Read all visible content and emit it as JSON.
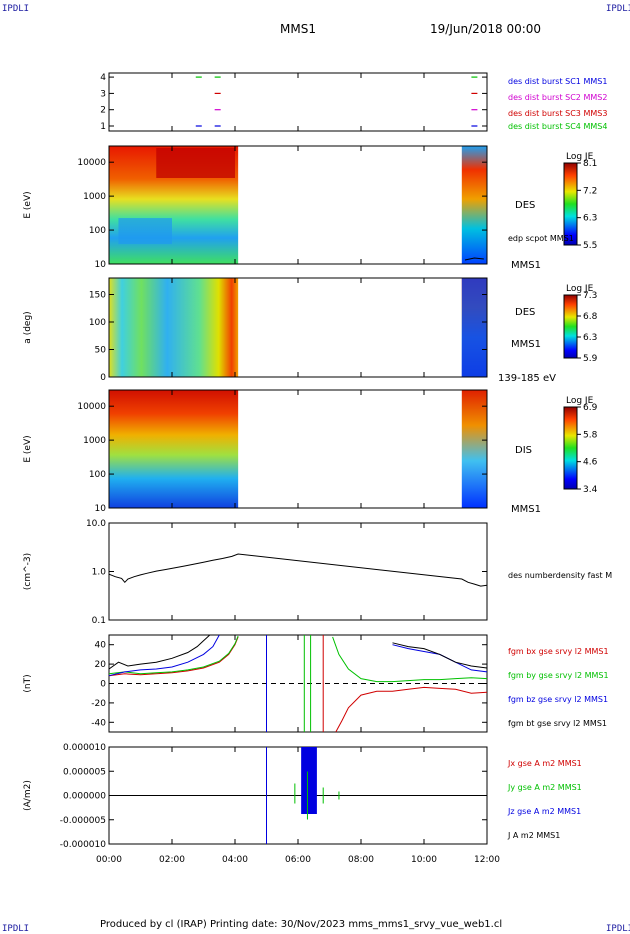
{
  "corner_marks": {
    "top_left": "IPDLI",
    "top_right": "IPDLI",
    "bottom_left": "IPDLI",
    "bottom_right": "IPDLI"
  },
  "header": {
    "spacecraft": "MMS1",
    "date": "19/Jun/2018 00:00"
  },
  "footer": {
    "text": "Produced by cl (IRAP)   Printing date: 30/Nov/2023   mms_mms1_srvy_vue_web1.cl"
  },
  "time_axis": {
    "labels": [
      "00:00",
      "02:00",
      "04:00",
      "06:00",
      "08:00",
      "10:00",
      "12:00"
    ],
    "range_hours": [
      0,
      12
    ]
  },
  "colors": {
    "red": "#d00000",
    "green": "#00c000",
    "blue": "#0000e0",
    "magenta": "#d000d0",
    "black": "#000000"
  },
  "chart_data": [
    {
      "id": "burst",
      "type": "scatter",
      "yticks": [
        "4",
        "3",
        "2",
        "1"
      ],
      "series": [
        {
          "name": "des dist burst SC1 MMS1",
          "level": 1,
          "color": "#0000e0",
          "x": [
            2.85,
            3.45,
            11.6
          ]
        },
        {
          "name": "des dist burst SC2 MMS2",
          "level": 2,
          "color": "#d000d0",
          "x": [
            3.45,
            11.6
          ]
        },
        {
          "name": "des dist burst SC3 MMS3",
          "level": 3,
          "color": "#d00000",
          "x": [
            3.45,
            11.6
          ]
        },
        {
          "name": "des dist burst SC4 MMS4",
          "level": 4,
          "color": "#00c000",
          "x": [
            2.85,
            3.45,
            11.6
          ]
        }
      ]
    },
    {
      "id": "des_energy",
      "type": "heatmap",
      "ylabel": "E (eV)",
      "yticks": [
        "10000",
        "1000",
        "100",
        "10"
      ],
      "ylim": [
        10,
        30000
      ],
      "log": true,
      "label": "DES",
      "overlay": "edp scpot MMS1",
      "instrument": "MMS1",
      "colorbar": {
        "title": "Log JE",
        "ticks": [
          "8.1",
          "7.2",
          "6.3",
          "5.5"
        ],
        "min": 5.5,
        "max": 8.1
      },
      "coverage_hours": [
        [
          0,
          4.1
        ],
        [
          11.2,
          12
        ]
      ]
    },
    {
      "id": "des_pitch",
      "type": "heatmap",
      "ylabel": "a (deg)",
      "yticks": [
        "150",
        "100",
        "50",
        "0"
      ],
      "ylim": [
        0,
        180
      ],
      "label": "DES",
      "instrument": "MMS1",
      "energy_range": "139-185 eV",
      "colorbar": {
        "title": "Log JE",
        "ticks": [
          "7.3",
          "6.8",
          "6.3",
          "5.9"
        ],
        "min": 5.9,
        "max": 7.3
      },
      "coverage_hours": [
        [
          0,
          4.1
        ],
        [
          11.2,
          12
        ]
      ]
    },
    {
      "id": "dis_energy",
      "type": "heatmap",
      "ylabel": "E (eV)",
      "yticks": [
        "10000",
        "1000",
        "100",
        "10"
      ],
      "ylim": [
        10,
        30000
      ],
      "log": true,
      "label": "DIS",
      "instrument": "MMS1",
      "colorbar": {
        "title": "Log JE",
        "ticks": [
          "6.9",
          "5.8",
          "4.6",
          "3.4"
        ],
        "min": 3.4,
        "max": 6.9
      },
      "coverage_hours": [
        [
          0,
          4.1
        ],
        [
          11.2,
          12
        ]
      ]
    },
    {
      "id": "density",
      "type": "line",
      "ylabel": "(cm^-3)",
      "yticks": [
        "10.0",
        "1.0",
        "0.1"
      ],
      "ylim": [
        0.1,
        10
      ],
      "log": true,
      "series": [
        {
          "name": "des numberdensity fast M",
          "color": "#000000",
          "x": [
            0.0,
            0.2,
            0.4,
            0.5,
            0.6,
            0.8,
            1.0,
            1.2,
            1.5,
            1.8,
            2.1,
            2.4,
            2.7,
            3.0,
            3.3,
            3.6,
            3.9,
            4.1,
            11.2,
            11.4,
            11.6,
            11.8,
            12.0
          ],
          "y": [
            0.88,
            0.78,
            0.72,
            0.6,
            0.7,
            0.78,
            0.85,
            0.92,
            1.02,
            1.1,
            1.2,
            1.3,
            1.42,
            1.55,
            1.7,
            1.85,
            2.05,
            2.3,
            0.7,
            0.6,
            0.55,
            0.5,
            0.52
          ]
        }
      ]
    },
    {
      "id": "fgm",
      "type": "line",
      "ylabel": "(nT)",
      "yticks": [
        "40",
        "20",
        "0",
        "-20",
        "-40"
      ],
      "ylim": [
        -50,
        50
      ],
      "series": [
        {
          "name": "fgm bx gse srvy l2 MMS1",
          "color": "#d00000",
          "x": [
            0.0,
            0.5,
            1.0,
            1.5,
            2.0,
            2.5,
            3.0,
            3.5,
            3.8,
            4.0,
            4.1,
            null,
            7.2,
            7.4,
            7.6,
            8.0,
            8.5,
            9.0,
            9.5,
            10.0,
            10.5,
            11.0,
            11.5,
            12.0
          ],
          "y": [
            8,
            10,
            9,
            10,
            11,
            13,
            16,
            22,
            30,
            40,
            48,
            null,
            -50,
            -38,
            -25,
            -12,
            -8,
            -8,
            -6,
            -4,
            -5,
            -6,
            -10,
            -9
          ]
        },
        {
          "name": "fgm by gse srvy l2 MMS1",
          "color": "#00c000",
          "x": [
            0.0,
            0.5,
            1.0,
            1.5,
            2.0,
            2.5,
            3.0,
            3.5,
            3.8,
            4.0,
            4.1,
            null,
            7.1,
            7.3,
            7.6,
            8.0,
            8.5,
            9.0,
            9.5,
            10.0,
            10.5,
            11.0,
            11.5,
            12.0
          ],
          "y": [
            10,
            12,
            10,
            11,
            12,
            14,
            17,
            23,
            31,
            41,
            49,
            null,
            48,
            30,
            15,
            5,
            2,
            2,
            3,
            4,
            4,
            5,
            6,
            5
          ]
        },
        {
          "name": "fgm bz gse srvy l2 MMS1",
          "color": "#0000e0",
          "x": [
            0.0,
            0.5,
            1.0,
            1.5,
            2.0,
            2.5,
            3.0,
            3.3,
            3.5,
            null,
            9.0,
            9.5,
            10.0,
            10.5,
            11.0,
            11.5,
            12.0
          ],
          "y": [
            8,
            12,
            14,
            15,
            17,
            22,
            30,
            38,
            50,
            null,
            40,
            36,
            33,
            30,
            22,
            14,
            12
          ]
        },
        {
          "name": "fgm bt gse srvy l2 MMS1",
          "color": "#000000",
          "x": [
            0.0,
            0.3,
            0.6,
            1.0,
            1.5,
            2.0,
            2.5,
            2.8,
            3.0,
            3.2,
            null,
            9.0,
            9.5,
            10.0,
            10.5,
            11.0,
            11.5,
            12.0
          ],
          "y": [
            15,
            22,
            18,
            20,
            22,
            26,
            32,
            38,
            44,
            50,
            null,
            42,
            38,
            36,
            30,
            22,
            18,
            16
          ]
        }
      ]
    },
    {
      "id": "current",
      "type": "line",
      "ylabel": "(A/m2)",
      "yticks": [
        "0.000010",
        "0.000005",
        "0.000000",
        "-0.000005",
        "-0.000010"
      ],
      "ylim": [
        -1e-05,
        1e-05
      ],
      "series": [
        {
          "name": "Jx gse A m2 MMS1",
          "color": "#d00000",
          "x": [
            0,
            12
          ],
          "y": [
            0,
            0
          ]
        },
        {
          "name": "Jy gse A m2 MMS1",
          "color": "#00c000",
          "x": [
            0,
            12
          ],
          "y": [
            0,
            0
          ]
        },
        {
          "name": "Jz gse A m2 MMS1",
          "color": "#0000e0",
          "x": [
            0,
            12
          ],
          "y": [
            0,
            0
          ]
        },
        {
          "name": "J A m2 MMS1",
          "color": "#000000",
          "x": [
            0,
            12
          ],
          "y": [
            0,
            0
          ]
        }
      ]
    }
  ]
}
